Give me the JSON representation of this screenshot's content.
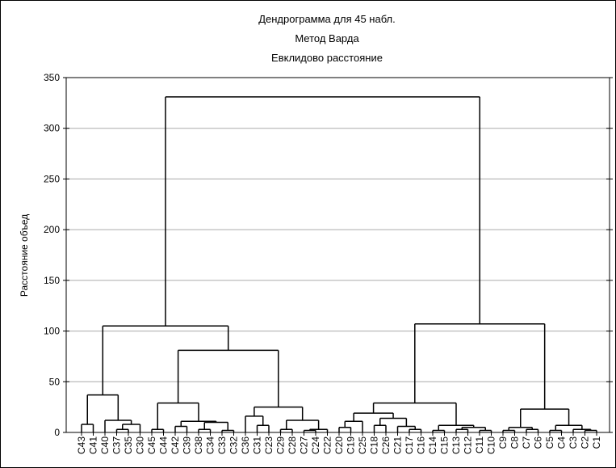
{
  "chart_data": {
    "type": "dendrogram",
    "title": "Дендрограмма для 45 набл.",
    "subtitle": [
      "Метод Варда",
      "Евклидово расстояние"
    ],
    "y_label": "Расстояние объед",
    "ylim": [
      0,
      350
    ],
    "yticks": [
      0,
      50,
      100,
      150,
      200,
      250,
      300,
      350
    ],
    "grid": true,
    "color": "#000000",
    "tree": {
      "height": 331,
      "children": [
        {
          "height": 105,
          "children": [
            {
              "height": 37,
              "children": [
                {
                  "height": 8,
                  "children": [
                    "C43",
                    "C41"
                  ]
                },
                {
                  "height": 12,
                  "children": [
                    "C40",
                    {
                      "height": 8,
                      "children": [
                        {
                          "height": 3,
                          "children": [
                            "C37",
                            "C35"
                          ]
                        },
                        "C30"
                      ]
                    }
                  ]
                }
              ]
            },
            {
              "height": 81,
              "children": [
                {
                  "height": 29,
                  "children": [
                    {
                      "height": 3,
                      "children": [
                        "C45",
                        "C44"
                      ]
                    },
                    {
                      "height": 11,
                      "children": [
                        {
                          "height": 6,
                          "children": [
                            "C42",
                            "C39"
                          ]
                        },
                        {
                          "height": 10,
                          "children": [
                            {
                              "height": 3,
                              "children": [
                                "C38",
                                "C34"
                              ]
                            },
                            {
                              "height": 2,
                              "children": [
                                "C33",
                                "C32"
                              ]
                            }
                          ]
                        }
                      ]
                    }
                  ]
                },
                {
                  "height": 25,
                  "children": [
                    {
                      "height": 16,
                      "children": [
                        "C36",
                        {
                          "height": 7,
                          "children": [
                            "C31",
                            "C23"
                          ]
                        }
                      ]
                    },
                    {
                      "height": 12,
                      "children": [
                        {
                          "height": 3,
                          "children": [
                            "C29",
                            "C28"
                          ]
                        },
                        {
                          "height": 3,
                          "children": [
                            {
                              "height": 2,
                              "children": [
                                "C27",
                                "C24"
                              ]
                            },
                            "C22"
                          ]
                        }
                      ]
                    }
                  ]
                }
              ]
            }
          ]
        },
        {
          "height": 107,
          "children": [
            {
              "height": 29,
              "children": [
                {
                  "height": 19,
                  "children": [
                    {
                      "height": 11,
                      "children": [
                        {
                          "height": 5,
                          "children": [
                            "C20",
                            "C19"
                          ]
                        },
                        "C25"
                      ]
                    },
                    {
                      "height": 14,
                      "children": [
                        {
                          "height": 7,
                          "children": [
                            "C18",
                            "C26"
                          ]
                        },
                        {
                          "height": 6,
                          "children": [
                            "C21",
                            {
                              "height": 3,
                              "children": [
                                "C17",
                                "C16"
                              ]
                            }
                          ]
                        }
                      ]
                    }
                  ]
                },
                {
                  "height": 7,
                  "children": [
                    {
                      "height": 2,
                      "children": [
                        "C14",
                        "C15"
                      ]
                    },
                    {
                      "height": 5,
                      "children": [
                        {
                          "height": 3,
                          "children": [
                            "C13",
                            "C12"
                          ]
                        },
                        {
                          "height": 2,
                          "children": [
                            "C11",
                            "C10"
                          ]
                        }
                      ]
                    }
                  ]
                }
              ]
            },
            {
              "height": 23,
              "children": [
                {
                  "height": 5,
                  "children": [
                    {
                      "height": 2,
                      "children": [
                        "C9",
                        "C8"
                      ]
                    },
                    {
                      "height": 3,
                      "children": [
                        "C7",
                        "C6"
                      ]
                    }
                  ]
                },
                {
                  "height": 7,
                  "children": [
                    {
                      "height": 2,
                      "children": [
                        "C5",
                        "C4"
                      ]
                    },
                    {
                      "height": 3,
                      "children": [
                        "C3",
                        {
                          "height": 2,
                          "children": [
                            "C2",
                            "C1"
                          ]
                        }
                      ]
                    }
                  ]
                }
              ]
            }
          ]
        }
      ]
    }
  }
}
